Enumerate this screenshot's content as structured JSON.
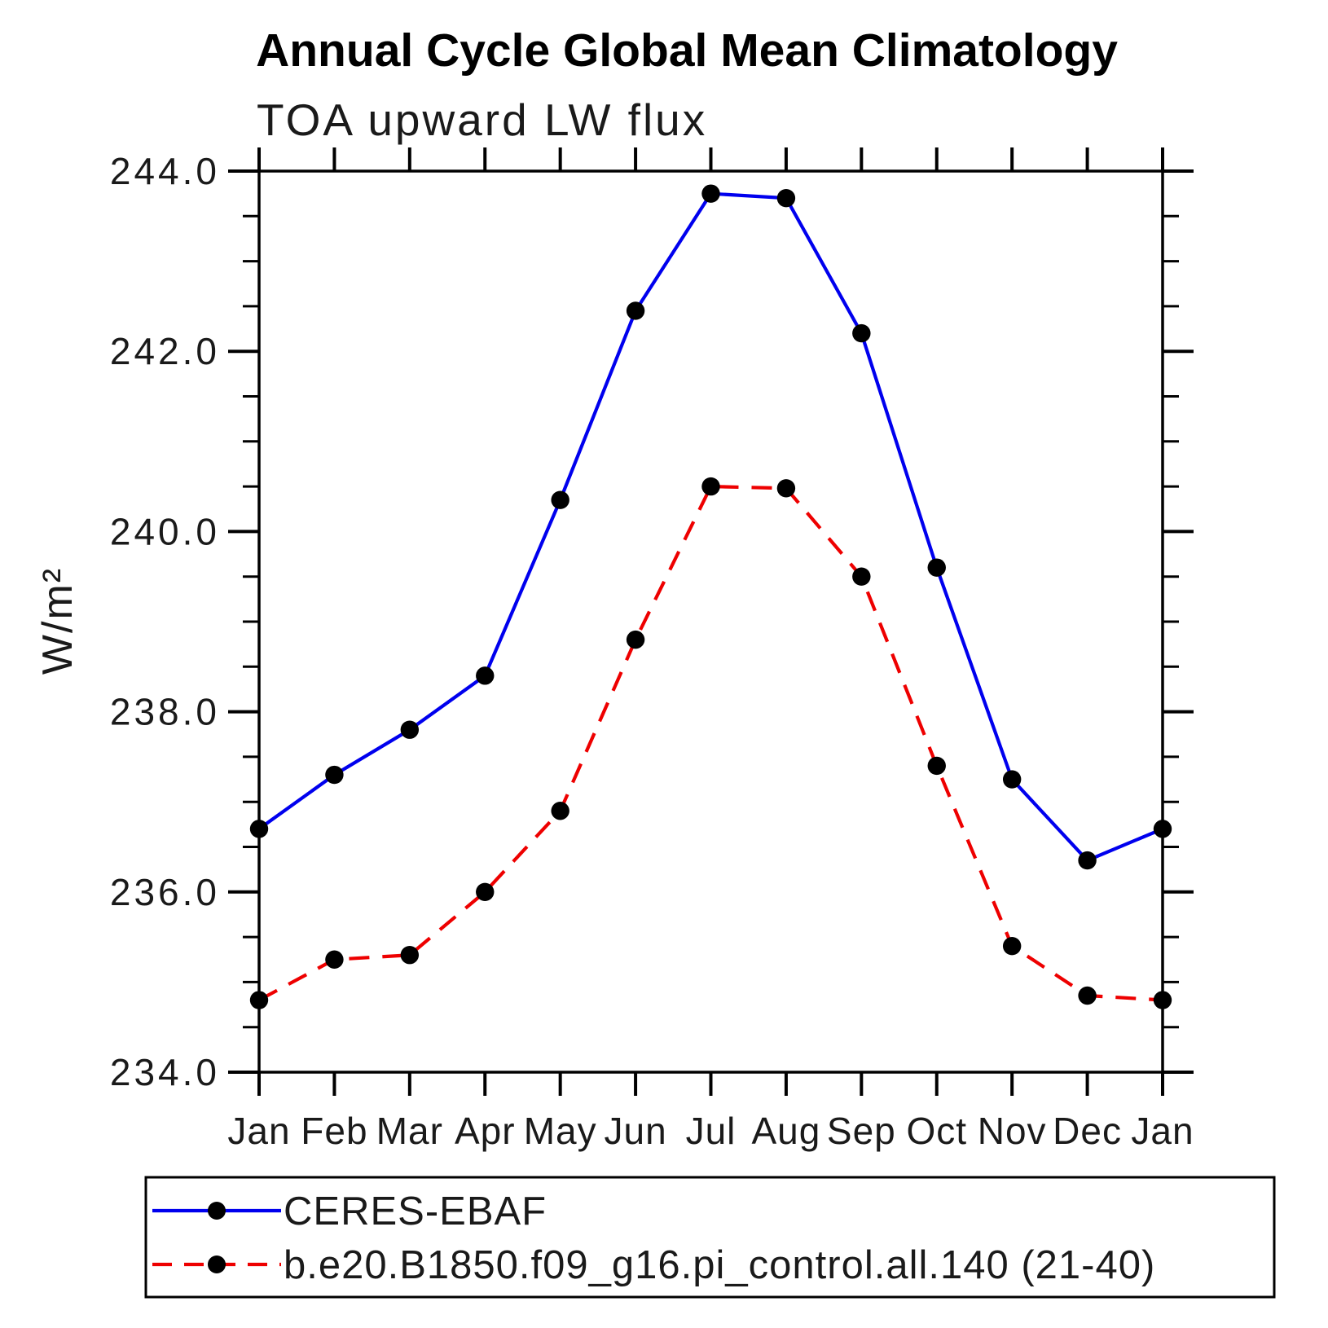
{
  "title": "Annual Cycle Global Mean Climatology",
  "subtitle": "TOA upward LW flux",
  "chart_data": {
    "type": "line",
    "x_categories": [
      "Jan",
      "Feb",
      "Mar",
      "Apr",
      "May",
      "Jun",
      "Jul",
      "Aug",
      "Sep",
      "Oct",
      "Nov",
      "Dec",
      "Jan"
    ],
    "ylabel": "W/m²",
    "ylim": [
      234.0,
      244.0
    ],
    "ytick_step": 2.0,
    "yminor_step": 0.5,
    "ytick_labels": [
      "234.0",
      "236.0",
      "238.0",
      "240.0",
      "242.0",
      "244.0"
    ],
    "grid": false,
    "legend_position": "bottom",
    "series": [
      {
        "name": "CERES-EBAF",
        "color": "#0000ee",
        "line_style": "solid",
        "marker": "circle",
        "marker_color": "#000000",
        "values": [
          236.7,
          237.3,
          237.8,
          238.4,
          240.35,
          242.45,
          243.75,
          243.7,
          242.2,
          239.6,
          237.25,
          236.35,
          236.7
        ]
      },
      {
        "name": "b.e20.B1850.f09_g16.pi_control.all.140 (21-40)",
        "color": "#ee0000",
        "line_style": "dashed",
        "marker": "circle",
        "marker_color": "#000000",
        "values": [
          234.8,
          235.25,
          235.3,
          236.0,
          236.9,
          238.8,
          240.5,
          240.48,
          239.5,
          237.4,
          235.4,
          234.85,
          234.8
        ]
      }
    ]
  }
}
